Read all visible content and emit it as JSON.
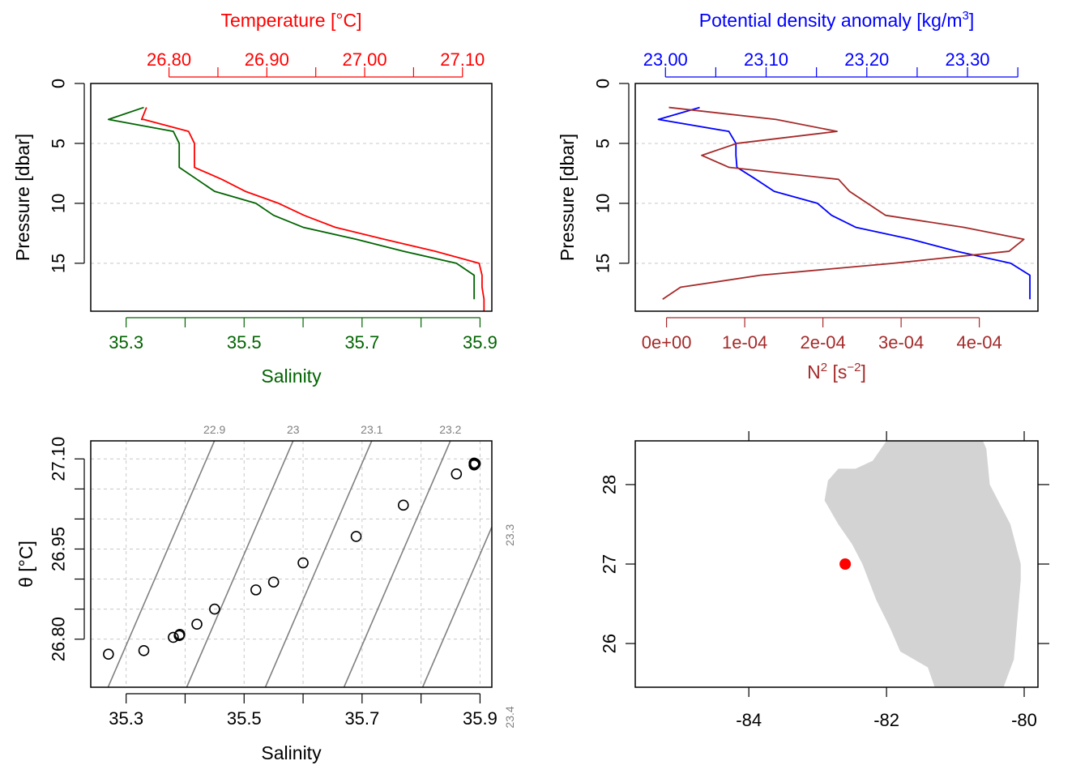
{
  "colors": {
    "temperature": "#ff0000",
    "salinity": "#006400",
    "density": "#0000ff",
    "n2": "#a52a2a",
    "isopycnal": "#808080",
    "land": "#d3d3d3",
    "station": "#ff0000"
  },
  "chart_data": [
    {
      "type": "line",
      "panel": "salinity-temperature-profile",
      "axes": {
        "top": {
          "label": "Temperature [°C]",
          "lim": [
            26.72,
            27.13
          ],
          "ticks": [
            26.8,
            26.85,
            26.9,
            26.95,
            27.0,
            27.05,
            27.1
          ],
          "tick_labels": [
            "26.80",
            "",
            "26.90",
            "",
            "27.00",
            "",
            "27.10"
          ]
        },
        "bottom": {
          "label": "Salinity",
          "lim": [
            35.24,
            35.92
          ],
          "ticks": [
            35.3,
            35.4,
            35.5,
            35.6,
            35.7,
            35.8,
            35.9
          ],
          "tick_labels": [
            "35.3",
            "",
            "35.5",
            "",
            "35.7",
            "",
            "35.9"
          ]
        },
        "left": {
          "label": "Pressure [dbar]",
          "lim": [
            19,
            0
          ],
          "ticks": [
            0,
            5,
            10,
            15
          ],
          "tick_labels": [
            "0",
            "5",
            "10",
            "15"
          ]
        }
      },
      "grid": true,
      "series": [
        {
          "name": "Temperature",
          "axis": "top",
          "points": [
            [
              26.777,
              2
            ],
            [
              26.772,
              3
            ],
            [
              26.774,
              3
            ],
            [
              26.82,
              4
            ],
            [
              26.826,
              5
            ],
            [
              26.826,
              6
            ],
            [
              26.826,
              7
            ],
            [
              26.854,
              8
            ],
            [
              26.878,
              9
            ],
            [
              26.912,
              10
            ],
            [
              26.938,
              11
            ],
            [
              26.97,
              12
            ],
            [
              27.02,
              13
            ],
            [
              27.072,
              14
            ],
            [
              27.117,
              15
            ],
            [
              27.12,
              16
            ],
            [
              27.12,
              17
            ],
            [
              27.122,
              18
            ],
            [
              27.122,
              19
            ]
          ]
        },
        {
          "name": "Salinity",
          "axis": "bottom",
          "points": [
            [
              35.33,
              2
            ],
            [
              35.27,
              3
            ],
            [
              35.38,
              4
            ],
            [
              35.39,
              5
            ],
            [
              35.39,
              6
            ],
            [
              35.39,
              7
            ],
            [
              35.42,
              8
            ],
            [
              35.45,
              9
            ],
            [
              35.52,
              10
            ],
            [
              35.55,
              11
            ],
            [
              35.6,
              12
            ],
            [
              35.69,
              13
            ],
            [
              35.77,
              14
            ],
            [
              35.86,
              15
            ],
            [
              35.89,
              16
            ],
            [
              35.89,
              17
            ],
            [
              35.89,
              18
            ]
          ]
        }
      ]
    },
    {
      "type": "line",
      "panel": "density-n2-profile",
      "axes": {
        "top": {
          "label": "Potential density anomaly [kg/m3]",
          "label_main": "Potential density anomaly [kg/m",
          "label_sup": "3",
          "label_end": "]",
          "lim": [
            22.97,
            23.37
          ],
          "ticks": [
            23.0,
            23.05,
            23.1,
            23.15,
            23.2,
            23.25,
            23.3,
            23.35
          ],
          "tick_labels": [
            "23.00",
            "",
            "23.10",
            "",
            "23.20",
            "",
            "23.30",
            ""
          ]
        },
        "bottom": {
          "label": "N2 [s-2]",
          "label_main": "N",
          "label_sup": "2",
          "label_mid": " [s",
          "label_sup2": "−2",
          "label_end": "]",
          "lim": [
            -4e-05,
            0.000475
          ],
          "ticks": [
            0,
            0.0001,
            0.0002,
            0.0003,
            0.0004
          ],
          "tick_labels": [
            "0e+00",
            "1e-04",
            "2e-04",
            "3e-04",
            "4e-04"
          ]
        },
        "left": {
          "label": "Pressure [dbar]",
          "lim": [
            19,
            0
          ],
          "ticks": [
            0,
            5,
            10,
            15
          ],
          "tick_labels": [
            "0",
            "5",
            "10",
            "15"
          ]
        }
      },
      "grid": true,
      "series": [
        {
          "name": "Potential density anomaly",
          "axis": "top",
          "points": [
            [
              23.034,
              2
            ],
            [
              22.993,
              3
            ],
            [
              23.063,
              4
            ],
            [
              23.07,
              5
            ],
            [
              23.07,
              6
            ],
            [
              23.071,
              7
            ],
            [
              23.09,
              8
            ],
            [
              23.108,
              9
            ],
            [
              23.151,
              10
            ],
            [
              23.165,
              11
            ],
            [
              23.189,
              12
            ],
            [
              23.244,
              13
            ],
            [
              23.289,
              14
            ],
            [
              23.343,
              15
            ],
            [
              23.362,
              16
            ],
            [
              23.362,
              17
            ],
            [
              23.362,
              18
            ]
          ]
        },
        {
          "name": "N2",
          "axis": "bottom",
          "points": [
            [
              3e-06,
              2
            ],
            [
              0.00014,
              3
            ],
            [
              0.000218,
              4
            ],
            [
              9e-05,
              5
            ],
            [
              4.5e-05,
              6
            ],
            [
              8e-05,
              7
            ],
            [
              0.00022,
              8
            ],
            [
              0.000234,
              9
            ],
            [
              0.00028,
              11
            ],
            [
              0.00038,
              12
            ],
            [
              0.000457,
              13
            ],
            [
              0.000438,
              14
            ],
            [
              0.00029,
              15
            ],
            [
              0.00012,
              16
            ],
            [
              1.8e-05,
              17
            ],
            [
              -5e-06,
              18
            ]
          ]
        }
      ]
    },
    {
      "type": "scatter",
      "panel": "ts-diagram",
      "axes": {
        "bottom": {
          "label": "Salinity",
          "lim": [
            35.24,
            35.92
          ],
          "ticks": [
            35.3,
            35.4,
            35.5,
            35.6,
            35.7,
            35.8,
            35.9
          ],
          "tick_labels": [
            "35.3",
            "",
            "35.5",
            "",
            "35.7",
            "",
            "35.9"
          ]
        },
        "left": {
          "label": "θ [°C]",
          "lim": [
            26.72,
            27.13
          ],
          "ticks": [
            26.8,
            26.85,
            26.9,
            26.95,
            27.0,
            27.05,
            27.1
          ],
          "tick_labels": [
            "26.80",
            "",
            "",
            "26.95",
            "",
            "",
            "27.10"
          ]
        }
      },
      "grid": true,
      "isopycnals": [
        {
          "label": "22.9",
          "sigma": 22.9
        },
        {
          "label": "23",
          "sigma": 23.0
        },
        {
          "label": "23.1",
          "sigma": 23.1
        },
        {
          "label": "23.2",
          "sigma": 23.2
        },
        {
          "label": "23.3",
          "sigma": 23.3
        },
        {
          "label": "23.4",
          "sigma": 23.4
        }
      ],
      "points": [
        [
          35.27,
          26.775
        ],
        [
          35.33,
          26.781
        ],
        [
          35.38,
          26.803
        ],
        [
          35.39,
          26.806
        ],
        [
          35.391,
          26.808
        ],
        [
          35.42,
          26.825
        ],
        [
          35.45,
          26.85
        ],
        [
          35.52,
          26.882
        ],
        [
          35.55,
          26.895
        ],
        [
          35.6,
          26.927
        ],
        [
          35.69,
          26.971
        ],
        [
          35.77,
          27.023
        ],
        [
          35.86,
          27.075
        ],
        [
          35.89,
          27.09
        ],
        [
          35.892,
          27.092
        ],
        [
          35.89,
          27.093
        ],
        [
          35.891,
          27.091
        ]
      ]
    },
    {
      "type": "map",
      "panel": "station-map",
      "axes": {
        "bottom": {
          "lim": [
            -85.65,
            -79.8
          ],
          "ticks": [
            -84,
            -82,
            -80
          ],
          "tick_labels": [
            "-84",
            "-82",
            "-80"
          ]
        },
        "left": {
          "lim": [
            25.45,
            28.55
          ],
          "ticks": [
            26,
            27,
            28
          ],
          "tick_labels": [
            "26",
            "27",
            "28"
          ]
        }
      },
      "land": [
        [
          -82.0,
          28.55
        ],
        [
          -82.2,
          28.3
        ],
        [
          -82.45,
          28.2
        ],
        [
          -82.7,
          28.2
        ],
        [
          -82.85,
          28.05
        ],
        [
          -82.9,
          27.8
        ],
        [
          -82.7,
          27.5
        ],
        [
          -82.5,
          27.25
        ],
        [
          -82.35,
          27.0
        ],
        [
          -82.15,
          26.55
        ],
        [
          -81.95,
          26.2
        ],
        [
          -81.8,
          25.9
        ],
        [
          -81.4,
          25.7
        ],
        [
          -81.3,
          25.45
        ],
        [
          -80.3,
          25.45
        ],
        [
          -80.15,
          25.8
        ],
        [
          -80.1,
          26.3
        ],
        [
          -80.05,
          26.8
        ],
        [
          -80.05,
          27.0
        ],
        [
          -80.2,
          27.5
        ],
        [
          -80.5,
          28.0
        ],
        [
          -80.55,
          28.45
        ],
        [
          -80.6,
          28.55
        ]
      ],
      "station": {
        "lon": -82.6,
        "lat": 27.0
      }
    }
  ]
}
